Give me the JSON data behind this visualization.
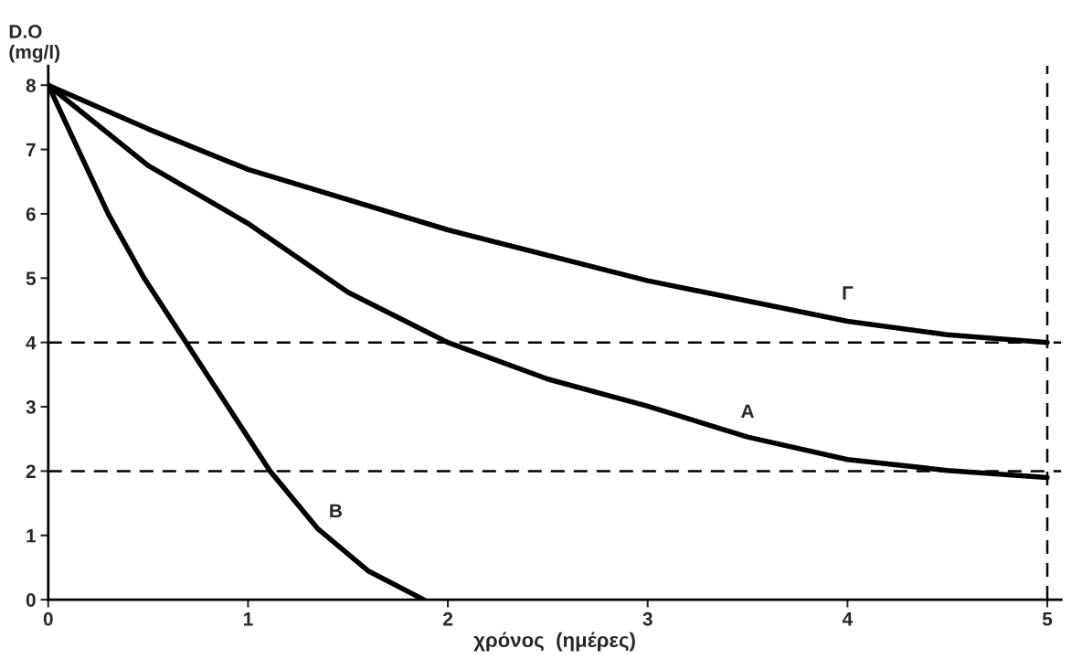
{
  "chart_data": {
    "type": "line",
    "xlabel": "χρόνος  (ημέρες)",
    "ylabel": "D.O\n(mg/l)",
    "xlim": [
      0,
      5.07
    ],
    "ylim": [
      0,
      8.3
    ],
    "xticks": [
      0,
      1,
      2,
      3,
      4,
      5
    ],
    "yticks": [
      0,
      1,
      2,
      3,
      4,
      5,
      6,
      7,
      8
    ],
    "grid": false,
    "legend": false,
    "marker": "none",
    "line_style": "solid",
    "series": [
      {
        "name": "Γ",
        "color": "#000000",
        "x": [
          0,
          0.5,
          1,
          2,
          3,
          4,
          4.5,
          5
        ],
        "values": [
          8,
          7.32,
          6.69,
          5.75,
          4.96,
          4.33,
          4.12,
          4.0
        ]
      },
      {
        "name": "A",
        "color": "#000000",
        "x": [
          0,
          0.5,
          1,
          1.5,
          2,
          2.5,
          3,
          3.5,
          4,
          4.5,
          5
        ],
        "values": [
          8,
          6.75,
          5.85,
          4.78,
          4.0,
          3.43,
          3.01,
          2.53,
          2.18,
          2.01,
          1.9
        ]
      },
      {
        "name": "B",
        "color": "#000000",
        "x": [
          0,
          0.15,
          0.3,
          0.48,
          0.69,
          0.9,
          1.11,
          1.35,
          1.6,
          1.88
        ],
        "values": [
          8,
          7.0,
          6.0,
          5,
          4,
          3.0,
          2,
          1.1,
          0.45,
          0
        ]
      }
    ],
    "ref_lines": [
      {
        "axis": "y",
        "value": 4,
        "color": "#000000",
        "line_style": "dashed"
      },
      {
        "axis": "y",
        "value": 2,
        "color": "#000000",
        "line_style": "dashed"
      },
      {
        "axis": "x",
        "value": 5,
        "color": "#000000",
        "line_style": "dashed"
      }
    ]
  }
}
